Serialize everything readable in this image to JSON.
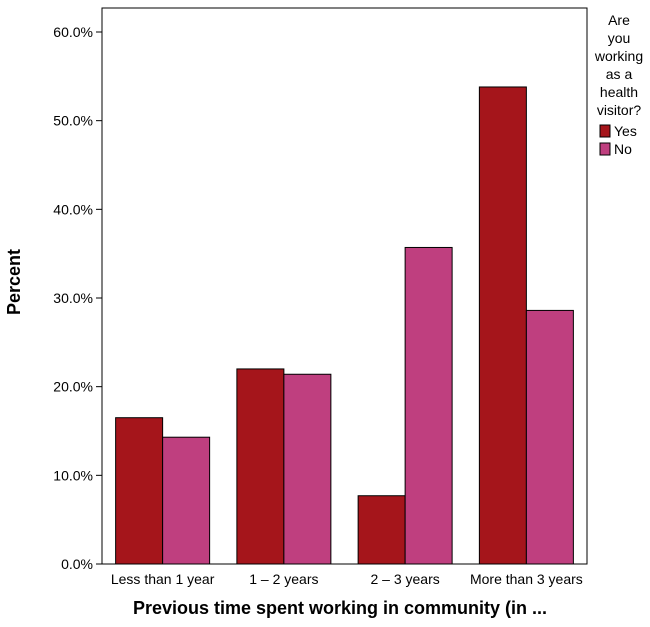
{
  "chart_data": {
    "type": "bar",
    "categories": [
      "Less than 1 year",
      "1 – 2 years",
      "2 – 3 years",
      "More than 3 years"
    ],
    "series": [
      {
        "name": "Yes",
        "values": [
          16.5,
          22.0,
          7.7,
          53.8
        ],
        "color": "#a5151b"
      },
      {
        "name": "No",
        "values": [
          14.3,
          21.4,
          35.7,
          28.6
        ],
        "color": "#bf3f7f"
      }
    ],
    "xlabel": "Previous time spent working in community (in ...",
    "ylabel": "Percent",
    "ylim": [
      0,
      60
    ],
    "yticks": [
      "0.0%",
      "10.0%",
      "20.0%",
      "30.0%",
      "40.0%",
      "50.0%",
      "60.0%"
    ],
    "legend": {
      "title_lines": [
        "Are",
        "you",
        "working",
        "as a",
        "health",
        "visitor?"
      ],
      "placement": "right"
    },
    "grid": false
  }
}
